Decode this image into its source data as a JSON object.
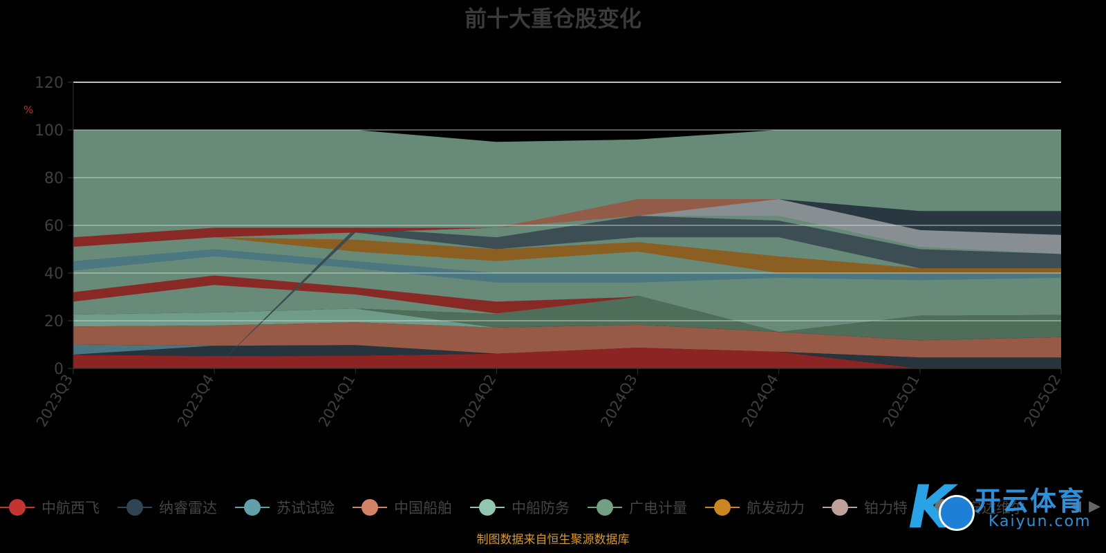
{
  "chart_data": {
    "type": "area",
    "title": "前十大重仓股变化",
    "ylabel": "%",
    "ylim": [
      0,
      120
    ],
    "yticks": [
      0,
      20,
      40,
      60,
      80,
      100,
      120
    ],
    "grid": true,
    "legend_position": "bottom",
    "categories": [
      "2023Q3",
      "2023Q4",
      "2024Q1",
      "2024Q2",
      "2024Q3",
      "2024Q4",
      "2025Q1",
      "2025Q2"
    ],
    "series": [
      {
        "name": "中航西飞",
        "color": "#8b2422",
        "values": [
          5.8,
          5.2,
          5.4,
          6.2,
          8.7,
          7.0,
          0,
          0
        ]
      },
      {
        "name": "纳睿雷达",
        "color": "#26343d",
        "values": [
          0,
          4.3,
          4.4,
          0,
          0,
          0,
          4.6,
          4.6
        ]
      },
      {
        "name": "苏试试验",
        "color": "#4a7682",
        "values": [
          4.2,
          0,
          0,
          0,
          0,
          0,
          0,
          0
        ]
      },
      {
        "name": "中国船舶",
        "color": "#965a47",
        "values": [
          7.6,
          8.5,
          9.6,
          10.9,
          9.6,
          8.3,
          7.2,
          8.5
        ]
      },
      {
        "name": "中船防务",
        "color": "#6f9c88",
        "values": [
          5.0,
          5.5,
          5.7,
          0,
          0,
          0,
          0,
          0
        ]
      },
      {
        "name": "广电计量",
        "color": "#4f6e59",
        "values": [
          0,
          0,
          0,
          5.7,
          12.2,
          0,
          0,
          0
        ]
      },
      {
        "name": "广电计量",
        "color": "#4f6e59",
        "values": [
          0,
          0,
          0,
          0,
          0,
          0,
          10.3,
          9.3
        ]
      }
    ],
    "x_tick_labels": [
      "2023Q3",
      "2023Q4",
      "2024Q1",
      "2024Q2",
      "2024Q3",
      "2024Q4",
      "2025Q1",
      "2025Q2"
    ]
  },
  "legend": [
    {
      "label": "中航西飞",
      "color": "#c23531"
    },
    {
      "label": "纳睿雷达",
      "color": "#2f4554"
    },
    {
      "label": "苏试试验",
      "color": "#61a0a8"
    },
    {
      "label": "中国船舶",
      "color": "#d48265"
    },
    {
      "label": "中船防务",
      "color": "#91c7ae"
    },
    {
      "label": "广电计量",
      "color": "#749f83"
    },
    {
      "label": "航发动力",
      "color": "#ca8622"
    },
    {
      "label": "铂力特",
      "color": "#bda29a"
    },
    {
      "label": "安达维尔",
      "color": "#6e7074"
    }
  ],
  "watermark": {
    "brand_cn": "开云体育",
    "brand_en": "Kaiyun.com"
  },
  "source": "制图数据来自恒生聚源数据库",
  "nav": {
    "prev": "◀",
    "next": "▶"
  }
}
